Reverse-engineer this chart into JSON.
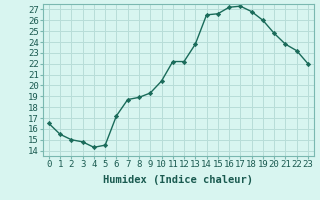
{
  "x": [
    0,
    1,
    2,
    3,
    4,
    5,
    6,
    7,
    8,
    9,
    10,
    11,
    12,
    13,
    14,
    15,
    16,
    17,
    18,
    19,
    20,
    21,
    22,
    23
  ],
  "y": [
    16.5,
    15.5,
    15.0,
    14.8,
    14.3,
    14.5,
    17.2,
    18.7,
    18.9,
    19.3,
    20.4,
    22.2,
    22.2,
    23.8,
    26.5,
    26.6,
    27.2,
    27.3,
    26.8,
    26.0,
    24.8,
    23.8,
    23.2,
    22.0
  ],
  "line_color": "#1a6b5a",
  "marker": "D",
  "marker_size": 2.2,
  "bg_color": "#d8f5f0",
  "grid_color": "#b8ddd8",
  "xlabel": "Humidex (Indice chaleur)",
  "xlim": [
    -0.5,
    23.5
  ],
  "ylim": [
    13.5,
    27.5
  ],
  "yticks": [
    14,
    15,
    16,
    17,
    18,
    19,
    20,
    21,
    22,
    23,
    24,
    25,
    26,
    27
  ],
  "xtick_labels": [
    "0",
    "1",
    "2",
    "3",
    "4",
    "5",
    "6",
    "7",
    "8",
    "9",
    "10",
    "11",
    "12",
    "13",
    "14",
    "15",
    "16",
    "17",
    "18",
    "19",
    "20",
    "21",
    "22",
    "23"
  ],
  "xlabel_fontsize": 7.5,
  "tick_fontsize": 6.5,
  "linewidth": 1.0
}
